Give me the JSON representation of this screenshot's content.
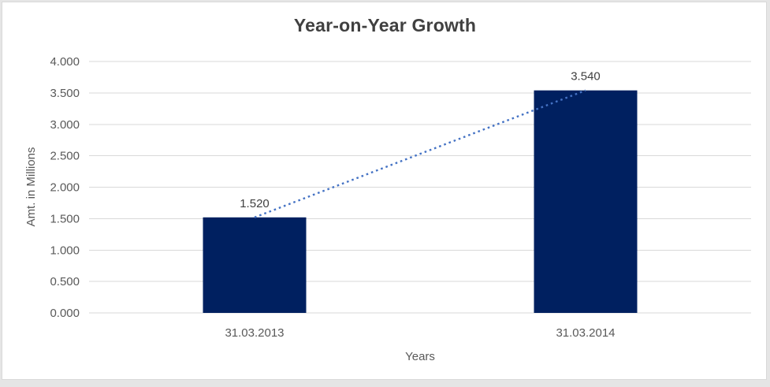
{
  "chart_data": {
    "type": "bar",
    "title": "Year-on-Year Growth",
    "xlabel": "Years",
    "ylabel": "Amt. in Millions",
    "categories": [
      "31.03.2013",
      "31.03.2014"
    ],
    "values": [
      1.52,
      3.54
    ],
    "data_labels": [
      "1.520",
      "3.540"
    ],
    "ylim": [
      0,
      4
    ],
    "yticks": [
      0,
      0.5,
      1,
      1.5,
      2,
      2.5,
      3,
      3.5,
      4
    ],
    "ytick_labels": [
      "0.000",
      "0.500",
      "1.000",
      "1.500",
      "2.000",
      "2.500",
      "3.000",
      "3.500",
      "4.000"
    ],
    "grid": true,
    "legend": "none",
    "trendline": {
      "type": "linear",
      "style": "dotted",
      "connects": "bar-top centers"
    },
    "colors": {
      "bar": "#002060",
      "trendline": "#4472C4",
      "gridline": "#D9D9D9",
      "title_text": "#404040",
      "axis_text": "#595959",
      "label_text": "#404040",
      "frame_border": "#D9D9D9",
      "chart_background": "#FFFFFF",
      "outer_background": "#E5E5E5"
    }
  }
}
